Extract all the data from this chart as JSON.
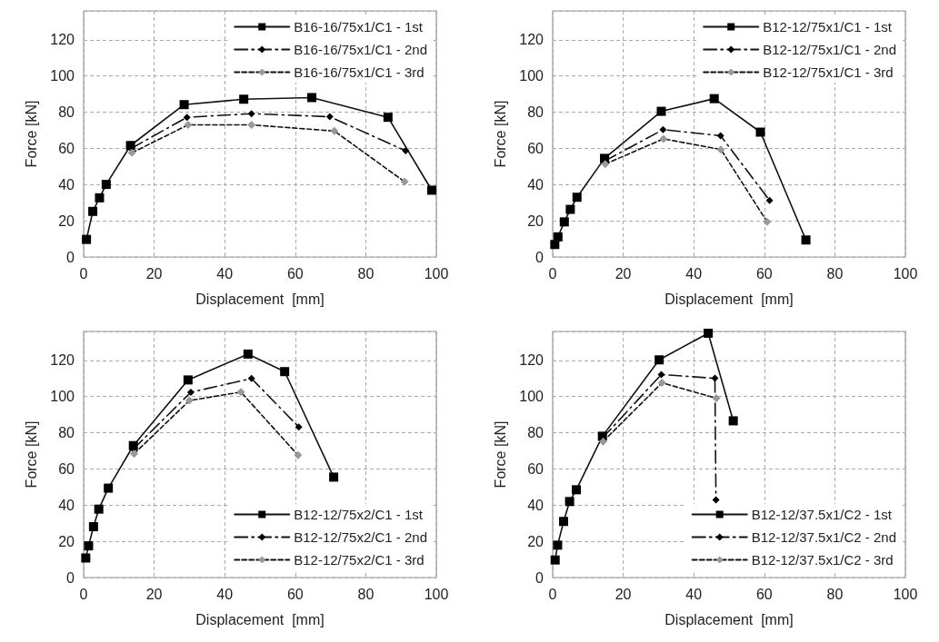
{
  "chart_data": [
    {
      "type": "line",
      "xlabel": "Displacement  [mm]",
      "ylabel": "Force [kN]",
      "xlim": [
        0,
        100
      ],
      "xticks": [
        0,
        20,
        40,
        60,
        80,
        100
      ],
      "ylim": [
        0,
        136
      ],
      "yticks": [
        0,
        20,
        40,
        60,
        80,
        100,
        120
      ],
      "grid": true,
      "legend": "top right",
      "series": [
        {
          "name": "B16-16/75x1/C1 - 1st",
          "color": "#000000",
          "marker": "square",
          "line_style": "solid",
          "x": [
            0.8,
            2.6,
            4.5,
            6.4,
            13.3,
            28.5,
            45.4,
            64.7,
            86.3,
            98.7
          ],
          "values": [
            9.7,
            25.2,
            32.7,
            40.1,
            61.6,
            84.2,
            87.2,
            88.1,
            77.2,
            36.9
          ]
        },
        {
          "name": "B16-16/75x1/C1 - 2nd",
          "color": "#000000",
          "marker": "diamond",
          "line_style": "dashdot",
          "x": [
            13.5,
            29.3,
            47.6,
            69.8,
            91.3
          ],
          "values": [
            60,
            77.2,
            79.2,
            77.5,
            58.7
          ]
        },
        {
          "name": "B16-16/75x1/C1 - 3rd",
          "color": "#999999",
          "marker": "diamond",
          "line_style": "dashed",
          "x": [
            13.7,
            29.6,
            47.6,
            71.1,
            91
          ],
          "values": [
            57.6,
            73,
            73,
            69.6,
            41.6
          ]
        }
      ]
    },
    {
      "type": "line",
      "xlabel": "Displacement  [mm]",
      "ylabel": "Force [kN]",
      "xlim": [
        0,
        100
      ],
      "xticks": [
        0,
        20,
        40,
        60,
        80,
        100
      ],
      "ylim": [
        0,
        136
      ],
      "yticks": [
        0,
        20,
        40,
        60,
        80,
        100,
        120
      ],
      "grid": true,
      "legend": "top right",
      "series": [
        {
          "name": "B12-12/75x1/C1 - 1st",
          "color": "#000000",
          "marker": "square",
          "line_style": "solid",
          "x": [
            0.6,
            1.5,
            3.3,
            5,
            6.9,
            14.7,
            30.8,
            45.8,
            58.9,
            71.8
          ],
          "values": [
            6.9,
            11.1,
            19.4,
            26.3,
            33,
            54.5,
            80.5,
            87.5,
            69,
            9.4
          ]
        },
        {
          "name": "B12-12/75x1/C1 - 2nd",
          "color": "#000000",
          "marker": "diamond",
          "line_style": "dashdot",
          "x": [
            14.7,
            31.3,
            47.6,
            61.5
          ],
          "values": [
            53,
            70.4,
            67,
            31.3
          ]
        },
        {
          "name": "B12-12/75x1/C1 - 3rd",
          "color": "#999999",
          "marker": "diamond",
          "line_style": "dashed",
          "x": [
            14.9,
            31.4,
            47.7,
            60.8
          ],
          "values": [
            51.3,
            65.3,
            59.4,
            19.4
          ]
        }
      ]
    },
    {
      "type": "line",
      "xlabel": "Displacement  [mm]",
      "ylabel": "Force [kN]",
      "xlim": [
        0,
        100
      ],
      "xticks": [
        0,
        20,
        40,
        60,
        80,
        100
      ],
      "ylim": [
        0,
        136
      ],
      "yticks": [
        0,
        20,
        40,
        60,
        80,
        100,
        120
      ],
      "grid": true,
      "legend": "bottom right",
      "series": [
        {
          "name": "B12-12/75x2/C1 - 1st",
          "color": "#000000",
          "marker": "square",
          "line_style": "solid",
          "x": [
            0.6,
            1.4,
            2.8,
            4.3,
            7,
            14.1,
            29.6,
            46.6,
            57,
            70.9
          ],
          "values": [
            10.8,
            17.5,
            28.1,
            37.8,
            49.4,
            72.9,
            109.2,
            123.5,
            113.8,
            55.5
          ]
        },
        {
          "name": "B12-12/75x2/C1 - 2nd",
          "color": "#000000",
          "marker": "diamond",
          "line_style": "dashdot",
          "x": [
            14.1,
            30.4,
            47.6,
            61
          ],
          "values": [
            71,
            102.4,
            110,
            83.2
          ]
        },
        {
          "name": "B12-12/75x2/C1 - 3rd",
          "color": "#999999",
          "marker": "diamond",
          "line_style": "dashed",
          "x": [
            14.3,
            30,
            44.6,
            60.8
          ],
          "values": [
            68.4,
            97.8,
            102.5,
            67.6
          ]
        }
      ]
    },
    {
      "type": "line",
      "xlabel": "Displacement  [mm]",
      "ylabel": "Force [kN]",
      "xlim": [
        0,
        100
      ],
      "xticks": [
        0,
        20,
        40,
        60,
        80,
        100
      ],
      "ylim": [
        0,
        136
      ],
      "yticks": [
        0,
        20,
        40,
        60,
        80,
        100,
        120
      ],
      "grid": true,
      "legend": "bottom right",
      "series": [
        {
          "name": "B12-12/37.5x1/C2 - 1st",
          "color": "#000000",
          "marker": "square",
          "line_style": "solid",
          "x": [
            0.7,
            1.4,
            3.1,
            4.8,
            6.7,
            14.1,
            30.2,
            44.1,
            51.2
          ],
          "values": [
            9.7,
            17.9,
            31,
            42,
            48.5,
            78.1,
            120.3,
            135,
            86.6
          ]
        },
        {
          "name": "B12-12/37.5x1/C2 - 2nd",
          "color": "#000000",
          "marker": "diamond",
          "line_style": "dashdot",
          "x": [
            14.1,
            30.8,
            46,
            46.3
          ],
          "values": [
            77,
            112.2,
            110.1,
            42.9
          ]
        },
        {
          "name": "B12-12/37.5x1/C2 - 3rd",
          "color": "#999999",
          "marker": "diamond",
          "line_style": "dashed",
          "x": [
            14.3,
            31,
            46.4
          ],
          "values": [
            75.2,
            107.6,
            99.1
          ]
        }
      ]
    }
  ]
}
